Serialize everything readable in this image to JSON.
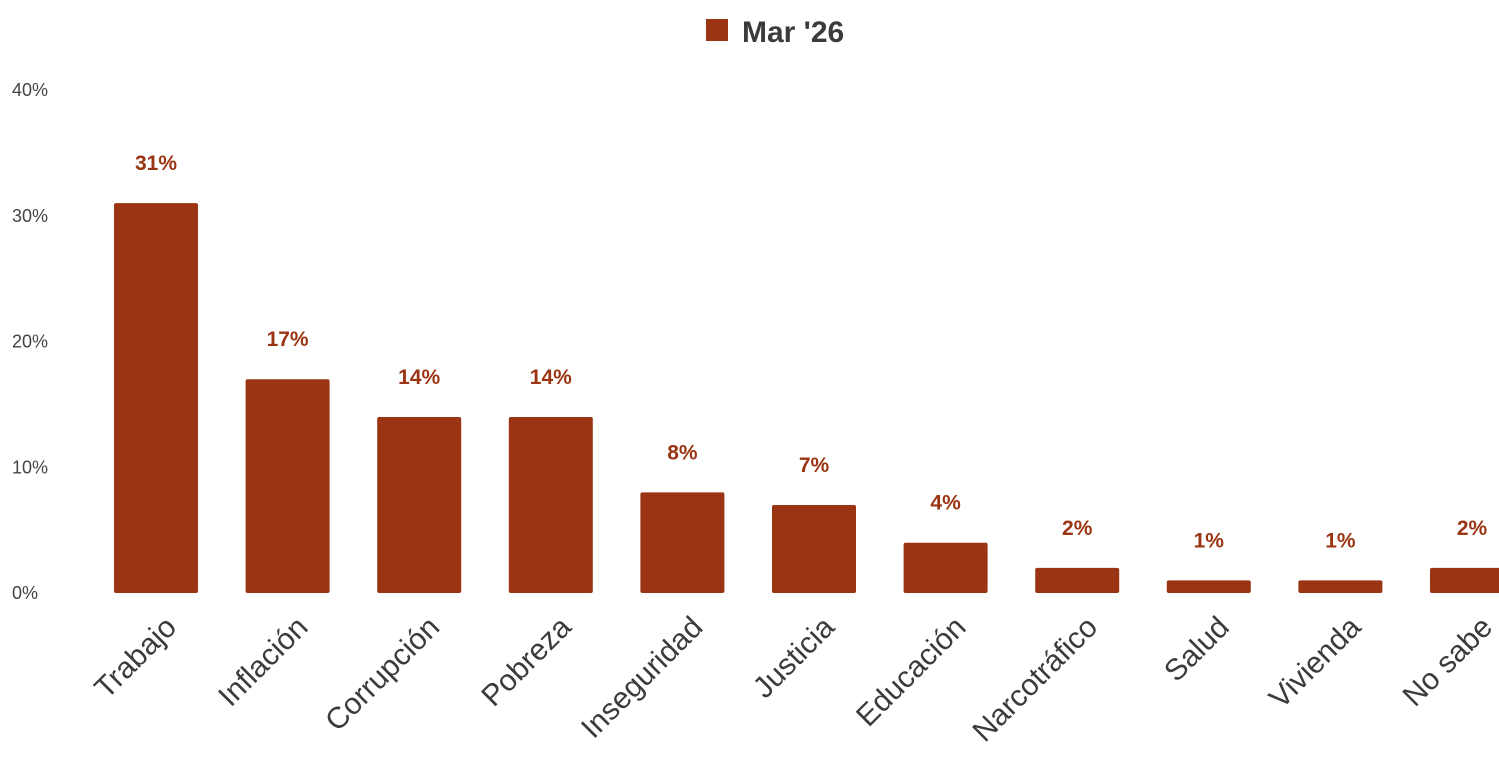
{
  "chart_data": {
    "type": "bar",
    "categories": [
      "Trabajo",
      "Inflación",
      "Corrupción",
      "Pobreza",
      "Inseguridad",
      "Justicia",
      "Educación",
      "Narcotráfico",
      "Salud",
      "Vivienda",
      "No sabe"
    ],
    "series": [
      {
        "name": "Mar '26",
        "values": [
          31,
          17,
          14,
          14,
          8,
          7,
          4,
          2,
          1,
          1,
          2
        ],
        "color": "#9a3412"
      }
    ],
    "data_labels": [
      "31%",
      "17%",
      "14%",
      "14%",
      "8%",
      "7%",
      "4%",
      "2%",
      "1%",
      "1%",
      "2%"
    ],
    "yticks": [
      0,
      10,
      20,
      30,
      40
    ],
    "ytick_labels": [
      "0%",
      "10%",
      "20%",
      "30%",
      "40%"
    ],
    "ylim": [
      0,
      40
    ],
    "grid": false,
    "legend_position": "top-center"
  }
}
